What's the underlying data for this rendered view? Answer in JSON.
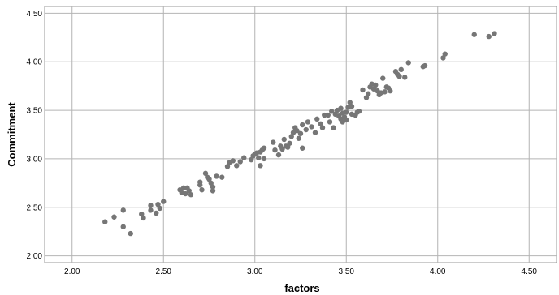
{
  "chart_data": {
    "type": "scatter",
    "title": "",
    "xlabel": "factors",
    "ylabel": "Commitment",
    "xlim": [
      1.85,
      4.65
    ],
    "ylim": [
      1.93,
      4.57
    ],
    "xticks": [
      "2.00",
      "2.50",
      "3.00",
      "3.50",
      "4.00",
      "4.50"
    ],
    "yticks": [
      "2.00",
      "2.50",
      "3.00",
      "3.50",
      "4.00",
      "4.50"
    ],
    "grid": true,
    "marker_color": "#767676",
    "series": [
      {
        "points": [
          [
            2.18,
            2.35
          ],
          [
            2.23,
            2.4
          ],
          [
            2.28,
            2.47
          ],
          [
            2.28,
            2.3
          ],
          [
            2.32,
            2.23
          ],
          [
            2.38,
            2.43
          ],
          [
            2.39,
            2.39
          ],
          [
            2.43,
            2.52
          ],
          [
            2.43,
            2.47
          ],
          [
            2.46,
            2.44
          ],
          [
            2.47,
            2.53
          ],
          [
            2.48,
            2.49
          ],
          [
            2.5,
            2.56
          ],
          [
            2.59,
            2.68
          ],
          [
            2.6,
            2.65
          ],
          [
            2.61,
            2.7
          ],
          [
            2.62,
            2.64
          ],
          [
            2.63,
            2.7
          ],
          [
            2.64,
            2.67
          ],
          [
            2.65,
            2.63
          ],
          [
            2.7,
            2.76
          ],
          [
            2.7,
            2.73
          ],
          [
            2.71,
            2.68
          ],
          [
            2.73,
            2.85
          ],
          [
            2.74,
            2.81
          ],
          [
            2.75,
            2.79
          ],
          [
            2.76,
            2.75
          ],
          [
            2.77,
            2.71
          ],
          [
            2.77,
            2.67
          ],
          [
            2.79,
            2.82
          ],
          [
            2.82,
            2.81
          ],
          [
            2.85,
            2.92
          ],
          [
            2.86,
            2.96
          ],
          [
            2.88,
            2.98
          ],
          [
            2.9,
            2.93
          ],
          [
            2.92,
            2.97
          ],
          [
            2.94,
            3.01
          ],
          [
            2.98,
            2.99
          ],
          [
            2.99,
            3.03
          ],
          [
            3.0,
            3.05
          ],
          [
            3.01,
            3.06
          ],
          [
            3.02,
            3.01
          ],
          [
            3.03,
            2.93
          ],
          [
            3.03,
            3.07
          ],
          [
            3.04,
            3.09
          ],
          [
            3.05,
            3.0
          ],
          [
            3.05,
            3.11
          ],
          [
            3.1,
            3.17
          ],
          [
            3.11,
            3.09
          ],
          [
            3.13,
            3.04
          ],
          [
            3.14,
            3.13
          ],
          [
            3.15,
            3.1
          ],
          [
            3.16,
            3.2
          ],
          [
            3.17,
            3.13
          ],
          [
            3.18,
            3.12
          ],
          [
            3.19,
            3.16
          ],
          [
            3.2,
            3.23
          ],
          [
            3.21,
            3.27
          ],
          [
            3.22,
            3.32
          ],
          [
            3.23,
            3.29
          ],
          [
            3.24,
            3.21
          ],
          [
            3.25,
            3.26
          ],
          [
            3.26,
            3.35
          ],
          [
            3.26,
            3.11
          ],
          [
            3.28,
            3.3
          ],
          [
            3.29,
            3.38
          ],
          [
            3.31,
            3.33
          ],
          [
            3.33,
            3.27
          ],
          [
            3.34,
            3.41
          ],
          [
            3.36,
            3.36
          ],
          [
            3.37,
            3.32
          ],
          [
            3.38,
            3.45
          ],
          [
            3.4,
            3.45
          ],
          [
            3.41,
            3.38
          ],
          [
            3.42,
            3.49
          ],
          [
            3.43,
            3.32
          ],
          [
            3.44,
            3.46
          ],
          [
            3.45,
            3.5
          ],
          [
            3.46,
            3.44
          ],
          [
            3.47,
            3.41
          ],
          [
            3.47,
            3.52
          ],
          [
            3.48,
            3.38
          ],
          [
            3.48,
            3.47
          ],
          [
            3.49,
            3.43
          ],
          [
            3.5,
            3.4
          ],
          [
            3.5,
            3.48
          ],
          [
            3.51,
            3.53
          ],
          [
            3.52,
            3.58
          ],
          [
            3.53,
            3.54
          ],
          [
            3.53,
            3.46
          ],
          [
            3.55,
            3.45
          ],
          [
            3.56,
            3.48
          ],
          [
            3.57,
            3.49
          ],
          [
            3.59,
            3.71
          ],
          [
            3.61,
            3.63
          ],
          [
            3.62,
            3.67
          ],
          [
            3.63,
            3.74
          ],
          [
            3.64,
            3.77
          ],
          [
            3.65,
            3.72
          ],
          [
            3.66,
            3.76
          ],
          [
            3.67,
            3.7
          ],
          [
            3.68,
            3.66
          ],
          [
            3.69,
            3.68
          ],
          [
            3.7,
            3.83
          ],
          [
            3.71,
            3.69
          ],
          [
            3.72,
            3.74
          ],
          [
            3.73,
            3.73
          ],
          [
            3.74,
            3.7
          ],
          [
            3.77,
            3.9
          ],
          [
            3.78,
            3.87
          ],
          [
            3.79,
            3.85
          ],
          [
            3.8,
            3.92
          ],
          [
            3.82,
            3.84
          ],
          [
            3.84,
            3.99
          ],
          [
            3.92,
            3.95
          ],
          [
            3.93,
            3.96
          ],
          [
            4.03,
            4.04
          ],
          [
            4.04,
            4.08
          ],
          [
            4.2,
            4.28
          ],
          [
            4.28,
            4.26
          ],
          [
            4.31,
            4.29
          ]
        ]
      }
    ]
  }
}
